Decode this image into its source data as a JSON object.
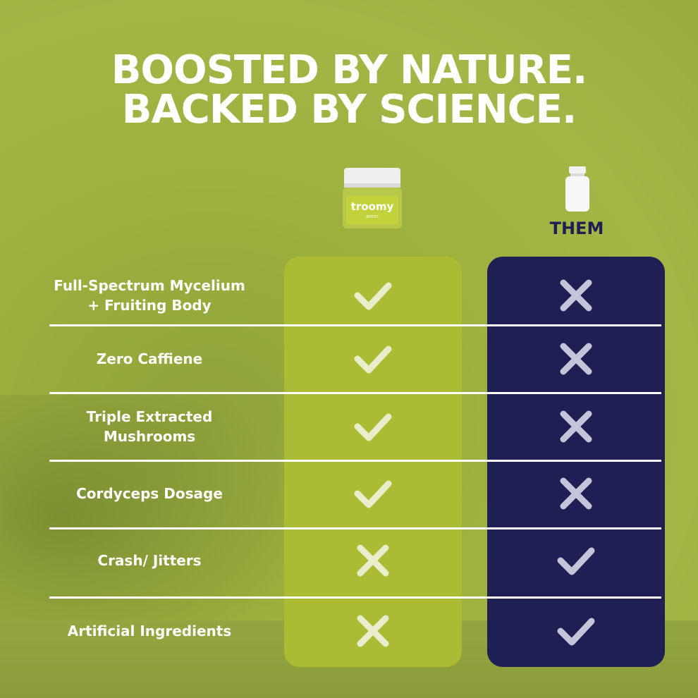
{
  "headline": {
    "line1": "BOOSTED BY NATURE.",
    "line2": "BACKED BY SCIENCE."
  },
  "columns": {
    "ours": {
      "product_logo": "troomy",
      "product_variant": "BOOST",
      "color": "#abbb33"
    },
    "them": {
      "label": "THEM",
      "color": "#1f1f53"
    }
  },
  "rows": [
    {
      "label": "Full-Spectrum Mycelium\n+ Fruiting Body",
      "ours": "check",
      "them": "cross"
    },
    {
      "label": "Zero Caffiene",
      "ours": "check",
      "them": "cross"
    },
    {
      "label": "Triple Extracted\nMushrooms",
      "ours": "check",
      "them": "cross"
    },
    {
      "label": "Cordyceps Dosage",
      "ours": "check",
      "them": "cross"
    },
    {
      "label": "Crash/ Jitters",
      "ours": "cross",
      "them": "check"
    },
    {
      "label": "Artificial Ingredients",
      "ours": "cross",
      "them": "check"
    }
  ]
}
